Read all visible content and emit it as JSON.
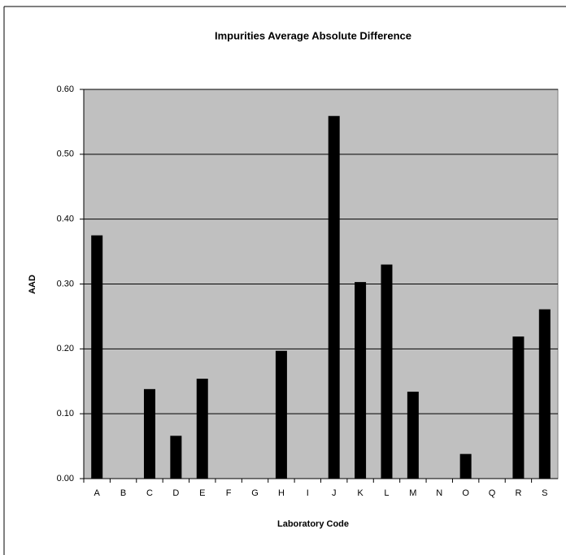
{
  "chart_data": {
    "type": "bar",
    "title": "Impurities Average Absolute Difference",
    "x_label": "Laboratory Code",
    "y_label": "AAD",
    "categories": [
      "A",
      "B",
      "C",
      "D",
      "E",
      "F",
      "G",
      "H",
      "I",
      "J",
      "K",
      "L",
      "M",
      "N",
      "O",
      "Q",
      "R",
      "S"
    ],
    "values": [
      0.375,
      0,
      0.138,
      0.066,
      0.154,
      0,
      0,
      0.197,
      0,
      0.559,
      0.303,
      0.33,
      0.134,
      0,
      0.038,
      0,
      0.219,
      0.261
    ],
    "color": "#000000",
    "background": "#c0c0c0",
    "ylim": [
      0,
      0.6
    ],
    "yticks": [
      {
        "value": 0,
        "label": "0.00"
      },
      {
        "value": 0.1,
        "label": "0.10"
      },
      {
        "value": 0.2,
        "label": "0.20"
      },
      {
        "value": 0.3,
        "label": "0.30"
      },
      {
        "value": 0.4,
        "label": "0.40"
      },
      {
        "value": 0.5,
        "label": "0.50"
      },
      {
        "value": 0.6,
        "label": "0.60"
      }
    ],
    "grid": true
  }
}
